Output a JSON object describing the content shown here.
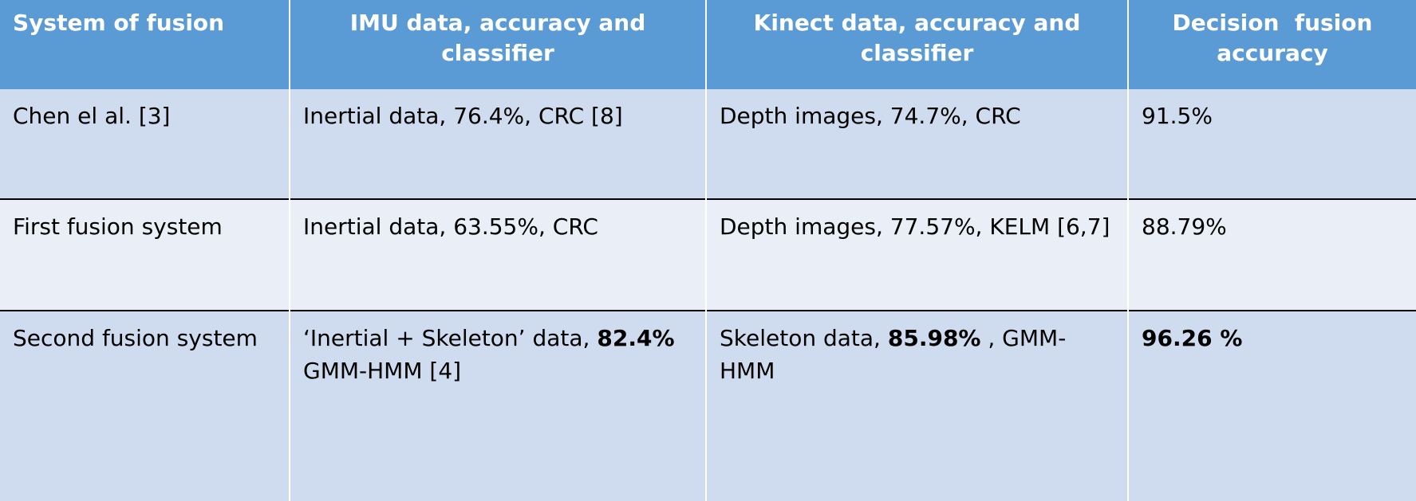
{
  "table": {
    "header": [
      "System of fusion",
      "IMU data, accuracy and classifier",
      "Kinect data, accuracy and classifier",
      "Decision  fusion accuracy"
    ],
    "rows": [
      [
        [
          {
            "text": "Chen el al. [3]"
          }
        ],
        [
          {
            "text": "Inertial data, 76.4%, CRC [8]"
          }
        ],
        [
          {
            "text": "Depth images, 74.7%, CRC"
          }
        ],
        [
          {
            "text": "91.5%"
          }
        ]
      ],
      [
        [
          {
            "text": "First fusion system"
          }
        ],
        [
          {
            "text": "Inertial data, 63.55%, CRC"
          }
        ],
        [
          {
            "text": "Depth images, 77.57%, KELM [6,7]"
          }
        ],
        [
          {
            "text": "88.79%"
          }
        ]
      ],
      [
        [
          {
            "text": "Second fusion system"
          }
        ],
        [
          {
            "text": "‘Inertial + Skeleton’ data, "
          },
          {
            "text": "82.4%",
            "bold": true
          },
          {
            "text": " GMM-HMM [4]"
          }
        ],
        [
          {
            "text": "Skeleton data, "
          },
          {
            "text": "85.98%",
            "bold": true
          },
          {
            "text": " , GMM-HMM"
          }
        ],
        [
          {
            "text": "96.26 %",
            "bold": true
          }
        ]
      ]
    ]
  }
}
